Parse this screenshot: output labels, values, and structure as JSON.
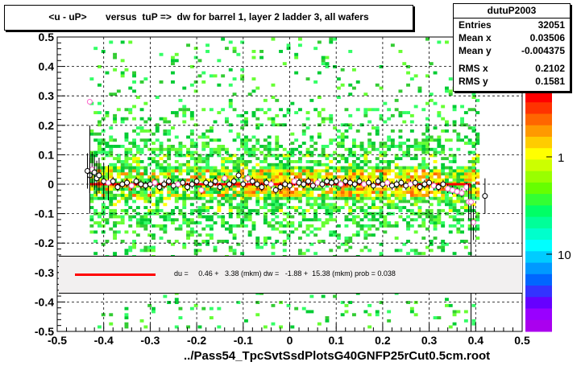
{
  "title": "<u - uP>       versus  tuP =>  dw for barrel 1, layer 2 ladder 3, all wafers",
  "stats": {
    "name": "dutuP2003",
    "rows": [
      {
        "key": "Entries",
        "value": "32051"
      },
      {
        "key": "Mean x",
        "value": "0.03506"
      },
      {
        "key": "Mean y",
        "value": "-0.004375"
      },
      {
        "key": "RMS x",
        "value": "0.2102"
      },
      {
        "key": "RMS y",
        "value": "0.1581"
      }
    ]
  },
  "fit_text": "du =     0.46 +   3.38 (mkm) dw =   -1.88 +  15.38 (mkm) prob = 0.038",
  "x_title": "../Pass54_TpcSvtSsdPlotsG40GNFP25rCut0.5cm.root",
  "colors": {
    "fit_line": "#ff0000",
    "frame": "#000000",
    "fit_box_bg": "#f2f0f0"
  },
  "chart_data": {
    "type": "heatmap",
    "xlim": [
      -0.5,
      0.5
    ],
    "ylim": [
      -0.5,
      0.5
    ],
    "x_ticks": [
      "-0.5",
      "-0.4",
      "-0.3",
      "-0.2",
      "-0.1",
      "0",
      "0.1",
      "0.2",
      "0.3",
      "0.4",
      "0.5"
    ],
    "y_ticks": [
      "0.5",
      "0.4",
      "0.3",
      "0.2",
      "0.1",
      "0",
      "-0.1",
      "-0.2",
      "-0.3",
      "-0.4",
      "-0.5"
    ],
    "z_ticks": [
      "1",
      "10"
    ],
    "grid": true,
    "fit_line": {
      "x": [
        -0.43,
        0.39
      ],
      "y": [
        0.0,
        0.0
      ]
    },
    "profile_points": {
      "x": [
        -0.435,
        -0.43,
        -0.425,
        -0.42,
        -0.415,
        -0.41,
        -0.4,
        -0.39,
        -0.38,
        -0.37,
        -0.36,
        -0.35,
        -0.34,
        -0.33,
        -0.32,
        -0.31,
        -0.3,
        -0.29,
        -0.28,
        -0.27,
        -0.26,
        -0.25,
        -0.24,
        -0.23,
        -0.22,
        -0.21,
        -0.2,
        -0.19,
        -0.18,
        -0.17,
        -0.16,
        -0.15,
        -0.14,
        -0.13,
        -0.12,
        -0.11,
        -0.1,
        -0.09,
        -0.08,
        -0.07,
        -0.06,
        -0.05,
        -0.04,
        -0.03,
        -0.02,
        -0.01,
        0.0,
        0.01,
        0.02,
        0.03,
        0.04,
        0.05,
        0.06,
        0.07,
        0.08,
        0.09,
        0.1,
        0.11,
        0.12,
        0.13,
        0.14,
        0.15,
        0.16,
        0.17,
        0.18,
        0.19,
        0.2,
        0.21,
        0.22,
        0.23,
        0.24,
        0.25,
        0.26,
        0.27,
        0.28,
        0.29,
        0.3,
        0.31,
        0.32,
        0.33,
        0.34,
        0.35,
        0.36,
        0.37,
        0.38,
        0.385,
        0.39,
        0.395,
        0.42
      ],
      "y": [
        0.045,
        0.03,
        0.05,
        0.04,
        0.02,
        0.03,
        0.01,
        0.005,
        0.01,
        -0.01,
        0.0,
        0.005,
        -0.005,
        0.01,
        0.0,
        -0.005,
        0.0,
        0.005,
        -0.01,
        0.0,
        0.01,
        -0.005,
        0.0,
        0.005,
        -0.01,
        0.0,
        0.01,
        -0.02,
        0.005,
        0.0,
        0.01,
        -0.01,
        0.02,
        0.0,
        0.01,
        0.03,
        0.0,
        0.02,
        0.01,
        0.0,
        -0.01,
        0.005,
        0.0,
        -0.02,
        -0.01,
        0.0,
        -0.005,
        0.01,
        0.005,
        0.0,
        0.01,
        -0.005,
        0.005,
        0.0,
        0.01,
        0.005,
        0.01,
        0.0,
        0.01,
        0.005,
        0.0,
        0.01,
        0.0,
        0.005,
        -0.005,
        0.01,
        0.0,
        0.005,
        -0.005,
        0.0,
        0.005,
        -0.005,
        0.0,
        0.005,
        -0.01,
        0.0,
        0.005,
        -0.005,
        -0.01,
        0.0,
        -0.015,
        -0.02,
        -0.025,
        -0.03,
        -0.01,
        -0.06,
        -0.06,
        -0.13,
        -0.04
      ]
    },
    "outlier_points": {
      "x": [
        -0.43
      ],
      "y": [
        0.28
      ]
    }
  }
}
